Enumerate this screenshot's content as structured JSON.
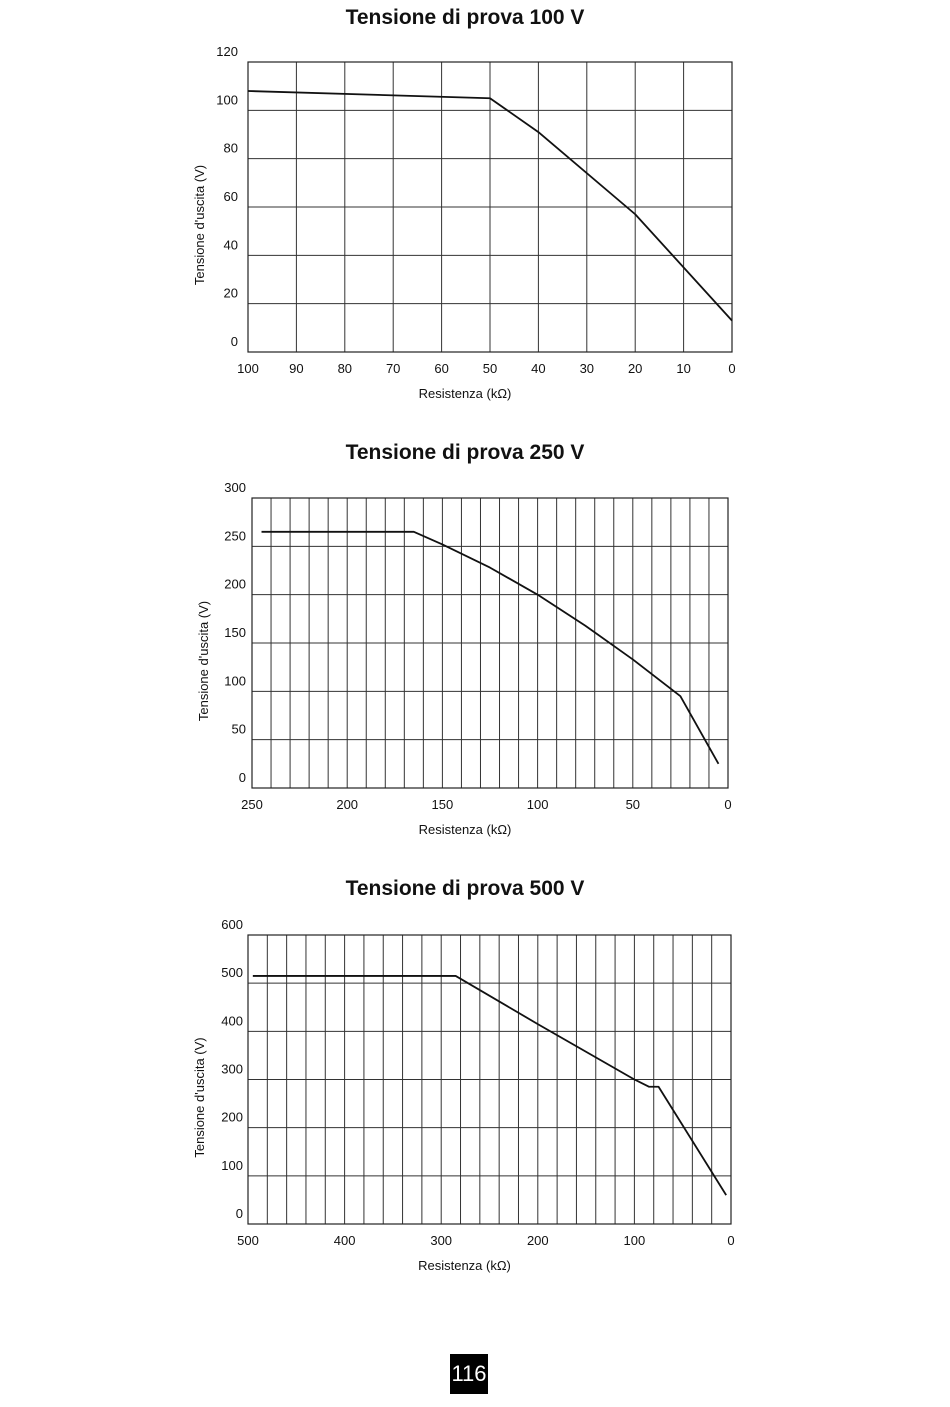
{
  "chart_data": [
    {
      "type": "line",
      "title": "Tensione di prova 100 V",
      "xlabel": "Resistenza (kΩ)",
      "ylabel": "Tensione d'uscita (V)",
      "xlim": [
        100,
        0
      ],
      "ylim": [
        0,
        120
      ],
      "x_ticks": [
        "100",
        "90",
        "80",
        "70",
        "60",
        "50",
        "40",
        "30",
        "20",
        "10",
        "0"
      ],
      "y_ticks": [
        "0",
        "20",
        "40",
        "60",
        "80",
        "100",
        "120"
      ],
      "x_grid_step": 10,
      "y_grid_step": 20,
      "grid": true,
      "series": [
        {
          "x": [
            100,
            50,
            40,
            20,
            0
          ],
          "y": [
            108,
            105,
            91,
            57,
            13
          ]
        }
      ]
    },
    {
      "type": "line",
      "title": "Tensione di prova 250 V",
      "xlabel": "Resistenza (kΩ)",
      "ylabel": "Tensione d'uscita (V)",
      "xlim": [
        250,
        0
      ],
      "ylim": [
        0,
        300
      ],
      "x_ticks": [
        "250",
        "200",
        "150",
        "100",
        "50",
        "0"
      ],
      "y_ticks": [
        "0",
        "50",
        "100",
        "150",
        "200",
        "250",
        "300"
      ],
      "x_grid_step": 10,
      "y_grid_step": 50,
      "grid": true,
      "series": [
        {
          "x": [
            245,
            165,
            150,
            125,
            100,
            75,
            50,
            25,
            5
          ],
          "y": [
            265,
            265,
            252,
            228,
            200,
            168,
            133,
            95,
            25
          ]
        }
      ]
    },
    {
      "type": "line",
      "title": "Tensione di prova 500 V",
      "xlabel": "Resistenza (kΩ)",
      "ylabel": "Tensione d'uscita (V)",
      "xlim": [
        500,
        0
      ],
      "ylim": [
        0,
        600
      ],
      "x_ticks": [
        "500",
        "400",
        "300",
        "200",
        "100",
        "0"
      ],
      "y_ticks": [
        "0",
        "100",
        "200",
        "300",
        "400",
        "500",
        "600"
      ],
      "x_grid_step": 20,
      "y_grid_step": 100,
      "grid": true,
      "series": [
        {
          "x": [
            495,
            285,
            200,
            100,
            85,
            75,
            5
          ],
          "y": [
            515,
            515,
            415,
            300,
            285,
            285,
            60
          ]
        }
      ]
    }
  ],
  "page_number": "116"
}
